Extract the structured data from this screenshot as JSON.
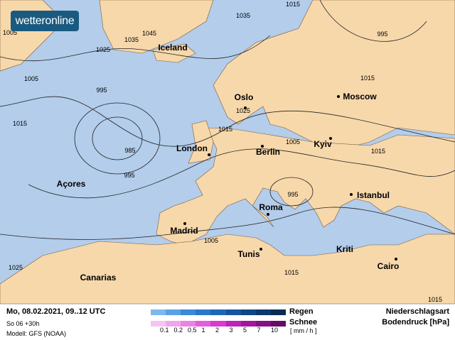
{
  "brand": {
    "logo": "wetteronline"
  },
  "map": {
    "colors": {
      "sea": "#b3cdeb",
      "land": "#f7d8ab",
      "isobar": "#222222"
    },
    "cities": [
      {
        "name": "Iceland",
        "dot": false
      },
      {
        "name": "Oslo",
        "dot": true
      },
      {
        "name": "Moscow",
        "dot": true
      },
      {
        "name": "London",
        "dot": true
      },
      {
        "name": "Berlin",
        "dot": true
      },
      {
        "name": "Kyiv",
        "dot": true
      },
      {
        "name": "Açores",
        "dot": false
      },
      {
        "name": "Istanbul",
        "dot": true
      },
      {
        "name": "Roma",
        "dot": true
      },
      {
        "name": "Madrid",
        "dot": true
      },
      {
        "name": "Tunis",
        "dot": true
      },
      {
        "name": "Kriti",
        "dot": false
      },
      {
        "name": "Cairo",
        "dot": true
      },
      {
        "name": "Canarias",
        "dot": false
      }
    ],
    "isobar_labels": [
      "1005",
      "1035",
      "1045",
      "1035",
      "1025",
      "1015",
      "995",
      "1015",
      "1005",
      "995",
      "1025",
      "1015",
      "1015",
      "1005",
      "1015",
      "985",
      "995",
      "995",
      "1005",
      "1025",
      "1015",
      "1015"
    ]
  },
  "footer": {
    "datetime": "Mo, 08.02.2021, 09..12 UTC",
    "run": "So 06 +30h",
    "model": "Modell: GFS (NOAA)",
    "rain_label": "Regen",
    "snow_label": "Schnee",
    "unit": "[ mm / h ]",
    "ticks": [
      "0.1",
      "0.2",
      "0.5",
      "1",
      "2",
      "3",
      "5",
      "7",
      "10"
    ],
    "rain_colors": [
      "#7db8ee",
      "#5aa2e6",
      "#3a8ad8",
      "#2a78cc",
      "#1e66b8",
      "#15559f",
      "#0f4686",
      "#0b386e",
      "#082b55"
    ],
    "snow_colors": [
      "#f6c4f2",
      "#f1a6ec",
      "#ec82e6",
      "#e35ddd",
      "#d83ad2",
      "#c020bc",
      "#a316a0",
      "#851085",
      "#660a66"
    ],
    "type_label": "Niederschlagsart",
    "pressure_label": "Bodendruck [hPa]"
  }
}
